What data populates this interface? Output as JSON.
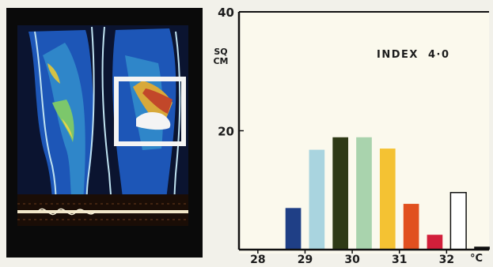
{
  "chart_data": {
    "type": "bar",
    "title": "",
    "ylabel_lines": [
      "SQ",
      "CM"
    ],
    "xlabel": "",
    "x_unit": "°C",
    "annotation": "INDEX  4·0",
    "ylim": [
      0,
      40
    ],
    "xlim": [
      27.6,
      32.9
    ],
    "yticks": [
      20,
      40
    ],
    "xticks": [
      28,
      29,
      30,
      31,
      32
    ],
    "bars": [
      {
        "x": 28.75,
        "value": 7.0,
        "color": "#1f3f86",
        "outline": false
      },
      {
        "x": 29.25,
        "value": 16.8,
        "color": "#a9d4df",
        "outline": false
      },
      {
        "x": 29.75,
        "value": 18.9,
        "color": "#2f3a17",
        "outline": false
      },
      {
        "x": 30.25,
        "value": 18.9,
        "color": "#a9d3ad",
        "outline": false
      },
      {
        "x": 30.75,
        "value": 17.0,
        "color": "#f4c233",
        "outline": false
      },
      {
        "x": 31.25,
        "value": 7.7,
        "color": "#e1501f",
        "outline": false
      },
      {
        "x": 31.75,
        "value": 2.5,
        "color": "#d21f3a",
        "outline": false
      },
      {
        "x": 32.25,
        "value": 9.6,
        "color": "#ffffff",
        "outline": true
      },
      {
        "x": 32.75,
        "value": 0.5,
        "color": "#111111",
        "outline": false
      }
    ]
  }
}
